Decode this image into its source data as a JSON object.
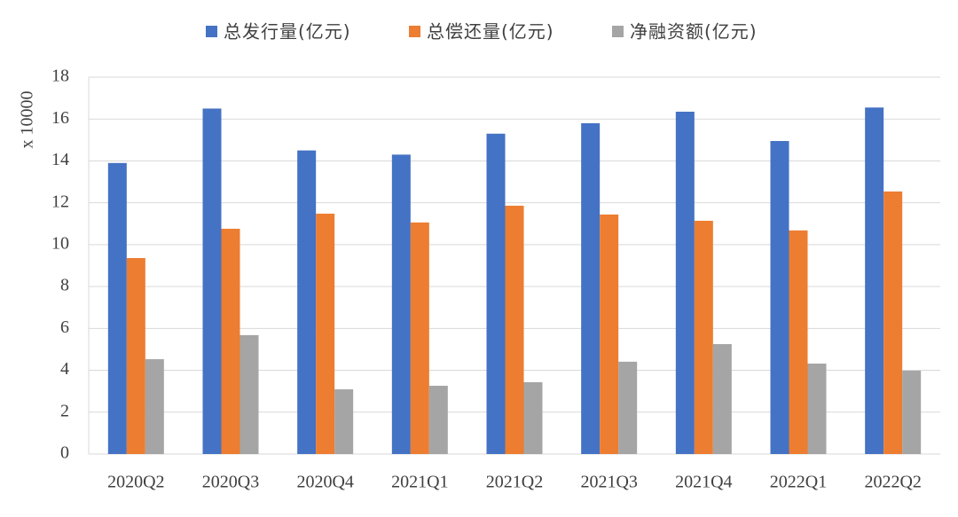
{
  "chart_data": {
    "type": "bar",
    "y_label": "x 10000",
    "categories": [
      "2020Q2",
      "2020Q3",
      "2020Q4",
      "2021Q1",
      "2021Q2",
      "2021Q3",
      "2021Q4",
      "2022Q1",
      "2022Q2"
    ],
    "series": [
      {
        "name": "总发行量(亿元)",
        "color": "#4472c4",
        "values": [
          13.9,
          16.5,
          14.5,
          14.3,
          15.3,
          15.8,
          16.35,
          14.95,
          16.55
        ]
      },
      {
        "name": "总偿还量(亿元)",
        "color": "#ed7d31",
        "values": [
          9.36,
          10.76,
          11.48,
          11.06,
          11.86,
          11.44,
          11.14,
          10.68,
          12.54
        ]
      },
      {
        "name": "净融资额(亿元)",
        "color": "#a5a5a5",
        "values": [
          4.53,
          5.68,
          3.09,
          3.26,
          3.43,
          4.41,
          5.25,
          4.32,
          3.98
        ]
      }
    ],
    "ylim": [
      0,
      18
    ],
    "yticks": [
      0,
      2,
      4,
      6,
      8,
      10,
      12,
      14,
      16,
      18
    ],
    "grid": true
  }
}
